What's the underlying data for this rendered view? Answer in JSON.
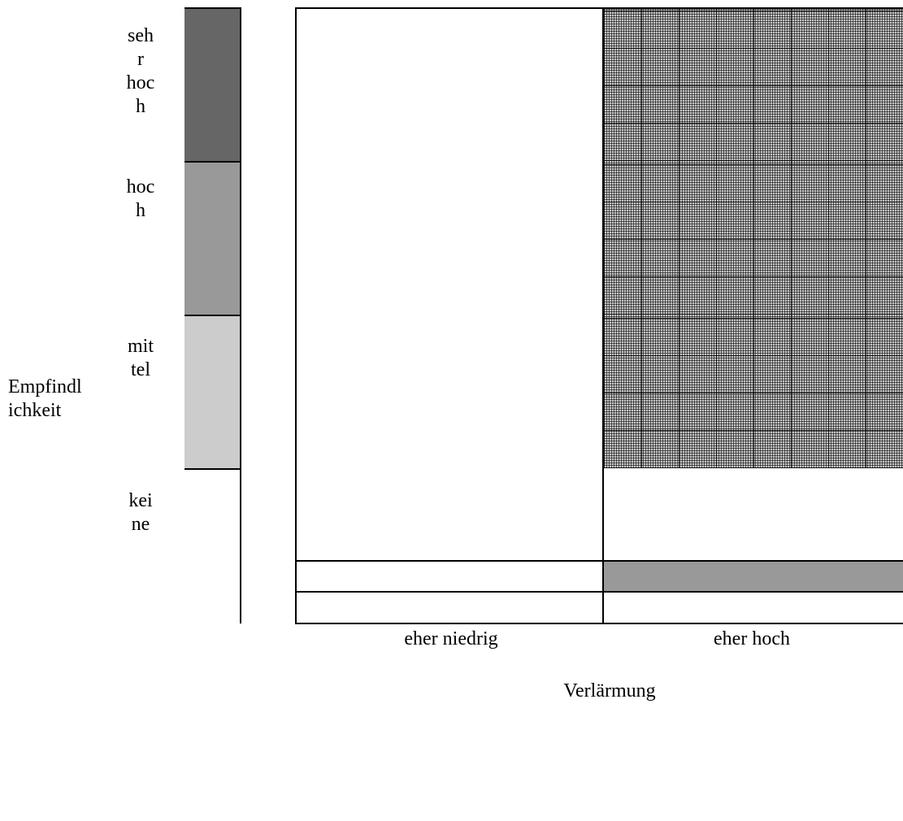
{
  "y_axis": {
    "title": "Empfindl ichkeit",
    "title_lines": [
      "Empfindl",
      "ichkeit"
    ]
  },
  "sensitivity_levels": [
    {
      "label_lines": [
        "seh",
        "r",
        "hoc",
        "h"
      ],
      "color": "#666666"
    },
    {
      "label_lines": [
        "hoc",
        "h"
      ],
      "color": "#999999"
    },
    {
      "label_lines": [
        "mit",
        "tel"
      ],
      "color": "#cccccc"
    },
    {
      "label_lines": [
        "kei",
        "ne"
      ],
      "color": "#ffffff"
    }
  ],
  "matrix": {
    "columns": [
      "eher niedrig",
      "eher hoch"
    ],
    "hatched_cells": [
      [
        0,
        1
      ],
      [
        1,
        1
      ],
      [
        2,
        1
      ]
    ]
  },
  "x_axis": {
    "title": "Verlärmung",
    "scale_labels": [
      "eher niedrig",
      "eher hoch"
    ],
    "scale_colors": [
      "#ffffff",
      "#999999"
    ]
  }
}
